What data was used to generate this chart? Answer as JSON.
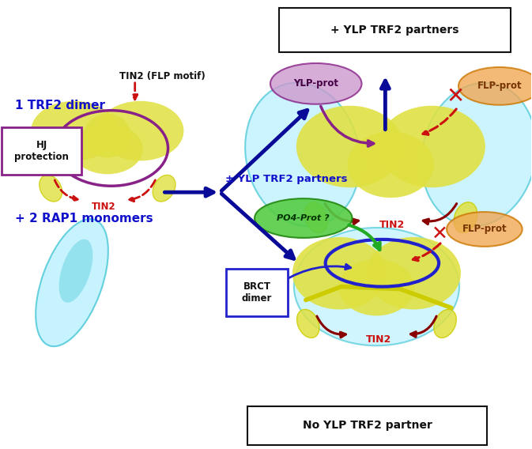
{
  "bg_color": "#ffffff",
  "fig_width": 6.73,
  "fig_height": 5.68,
  "labels": {
    "trf2_dimer": "1 TRF2 dimer",
    "rap1_monomers": "+ 2 RAP1 monomers",
    "tin2_flp": "TIN2 (FLP motif)",
    "tin2_left": "TIN2",
    "hj_protection": "HJ\nprotection",
    "ylp_partners_top": "+ YLP TRF2 partners",
    "ylp_partners_mid": "± YLP TRF2 partners",
    "no_ylp_partner": "No YLP TRF2 partner",
    "ylp_prot": "YLP-prot",
    "flp_prot_top": "FLP-prot",
    "flp_prot_bot": "FLP-prot",
    "po4_prot": "PO4-Prot ?",
    "brct_dimer": "BRCT\ndimer",
    "tin2_top": "TIN2",
    "tin2_bot": "TIN2"
  },
  "colors": {
    "yellow": "#cccc00",
    "yellow_fill": "#e0e040",
    "cyan_fill": "#aaeeff",
    "cyan_edge": "#22bbcc",
    "purple": "#882288",
    "purple_fill": "#cc99cc",
    "orange_fill": "#f0a855",
    "orange_edge": "#cc7700",
    "green_fill": "#55cc44",
    "green_edge": "#228811",
    "blue_ellipse": "#2222cc",
    "red": "#cc1111",
    "dark_red": "#880000",
    "blue": "#0a0a99",
    "green_arrow": "#22aa22",
    "label_blue": "#1111cc",
    "label_black": "#111111",
    "white": "#ffffff"
  }
}
